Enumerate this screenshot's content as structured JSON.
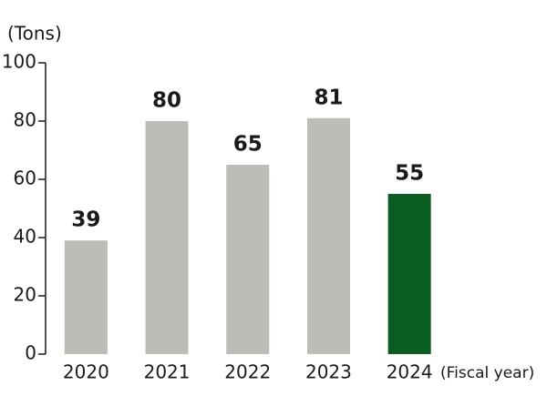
{
  "chart_data": {
    "type": "bar",
    "y_axis_label": "(Tons)",
    "x_axis_label": "(Fiscal year)",
    "categories": [
      "2020",
      "2021",
      "2022",
      "2023",
      "2024"
    ],
    "values": [
      39,
      80,
      65,
      81,
      55
    ],
    "colors": [
      "#bdbcb6",
      "#bdbcb6",
      "#bdbcb6",
      "#bdbcb6",
      "#0a5c23"
    ],
    "ylim": [
      0,
      100
    ],
    "yticks": [
      0,
      20,
      40,
      60,
      80,
      100
    ],
    "grid": false
  }
}
